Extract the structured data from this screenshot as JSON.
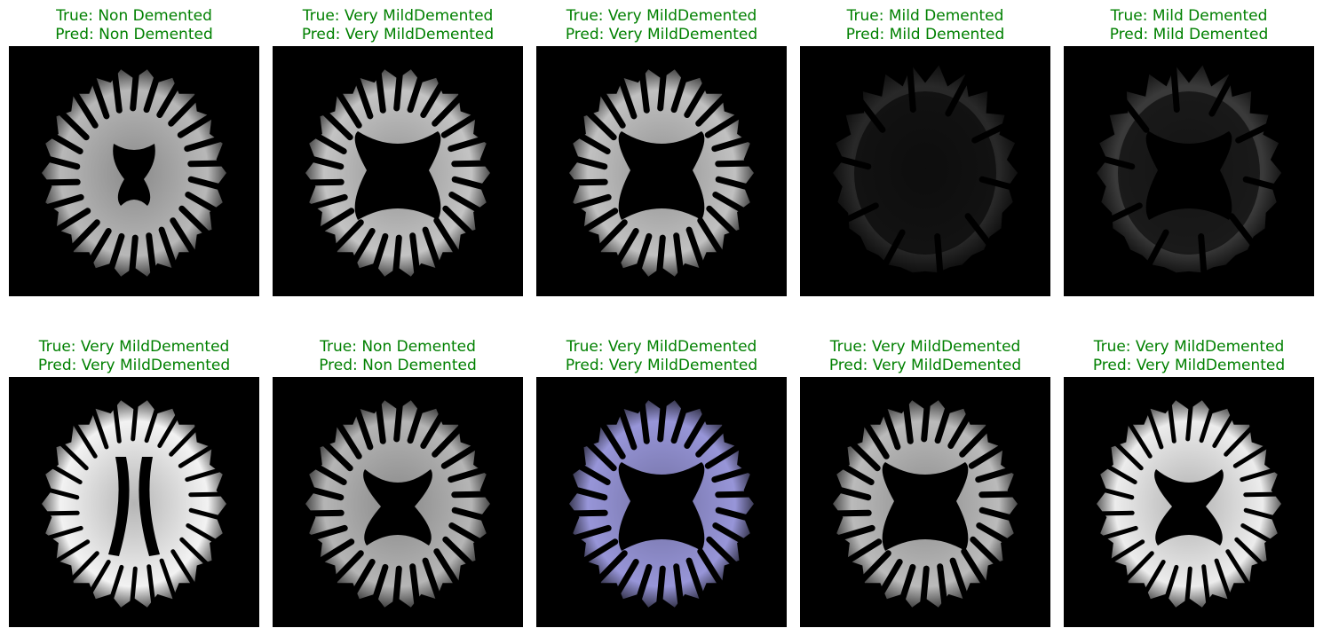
{
  "figure": {
    "panels": [
      {
        "true_label": "True: Non Demented",
        "pred_label": "Pred: Non Demented",
        "style": "dense",
        "tint": "#d8d8d8",
        "ventricle": "small"
      },
      {
        "true_label": "True: Very MildDemented",
        "pred_label": "Pred: Very MildDemented",
        "style": "normal",
        "tint": "#d9d9d9",
        "ventricle": "large"
      },
      {
        "true_label": "True: Very MildDemented",
        "pred_label": "Pred: Very MildDemented",
        "style": "normal",
        "tint": "#d6d6d6",
        "ventricle": "large"
      },
      {
        "true_label": "True: Mild Demented",
        "pred_label": "Pred: Mild Demented",
        "style": "faint",
        "tint": "#4a4a4a",
        "ventricle": "none"
      },
      {
        "true_label": "True: Mild Demented",
        "pred_label": "Pred: Mild Demented",
        "style": "faint",
        "tint": "#6a6a6a",
        "ventricle": "large"
      },
      {
        "true_label": "True: Very MildDemented",
        "pred_label": "Pred: Very MildDemented",
        "style": "bright",
        "tint": "#f2f2f2",
        "ventricle": "slits"
      },
      {
        "true_label": "True: Non Demented",
        "pred_label": "Pred: Non Demented",
        "style": "normal",
        "tint": "#c9c9c9",
        "ventricle": "butterfly"
      },
      {
        "true_label": "True: Very MildDemented",
        "pred_label": "Pred: Very MildDemented",
        "style": "normal",
        "tint": "#a8a6f0",
        "ventricle": "large"
      },
      {
        "true_label": "True: Very MildDemented",
        "pred_label": "Pred: Very MildDemented",
        "style": "normal",
        "tint": "#cfcfcf",
        "ventricle": "large"
      },
      {
        "true_label": "True: Very MildDemented",
        "pred_label": "Pred: Very MildDemented",
        "style": "bright",
        "tint": "#ececec",
        "ventricle": "butterfly"
      }
    ]
  }
}
